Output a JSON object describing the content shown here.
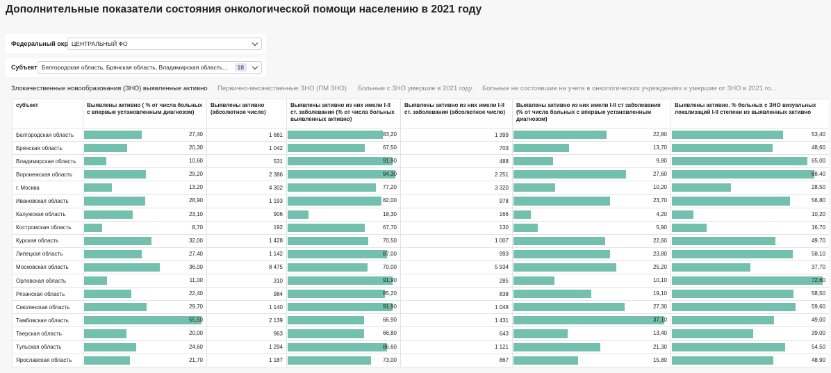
{
  "title": "Дополнительные показатели состояния онкологической помощи населению в 2021 году",
  "filters": {
    "district": {
      "label": "Федеральный округ",
      "value": "ЦЕНТРАЛЬНЫЙ ФО"
    },
    "subject": {
      "label": "Субъект",
      "value": "Белгородская область, Брянская область, Владимирская область, Вор...",
      "count": "18"
    }
  },
  "tabs": [
    "Злокачественные новообразования (ЗНО) выявленные активно",
    "Первично-множественные ЗНО (ПМ ЗНО)",
    "Больные с ЗНО умершие в 2021 году.",
    "Больные не состоявшие на учете в онкологических учреждениях и умершие от ЗНО в 2021 го..."
  ],
  "accent_color": "#74c0ae",
  "table": {
    "columns": [
      {
        "label": "субъект",
        "kind": "name"
      },
      {
        "label": "Выявлены активно ( % от числа больных с впервые установленным диагнозом)",
        "kind": "bar",
        "max": 55.5
      },
      {
        "label": "Выявлены активно (абсолютное число)",
        "kind": "num"
      },
      {
        "label": "Выявлены активно из них имели I-II ст. заболевания (% от числа больных выявленных активно)",
        "kind": "bar",
        "max": 94.3
      },
      {
        "label": "Выявлены активно из них имели I-II ст. заболевания (абсолютное число)",
        "kind": "num"
      },
      {
        "label": "Выявлены активно из них имели I-II ст заболевания (% от числа больных с впервые установленным диагнозом)",
        "kind": "bar",
        "max": 37.1
      },
      {
        "label": "Выявлены активно. % больных с ЗНО визуальных локализаций I-II степени из выявленных активно",
        "kind": "bar",
        "max": 72.6
      }
    ],
    "rows": [
      [
        "Белгородская область",
        "27,40",
        "1 681",
        "83,20",
        "1 399",
        "22,80",
        "53,40"
      ],
      [
        "Брянская область",
        "20,30",
        "1 042",
        "67,50",
        "703",
        "13,70",
        "48,60"
      ],
      [
        "Владимирская область",
        "10,60",
        "531",
        "91,90",
        "488",
        "9,80",
        "65,00"
      ],
      [
        "Воронежская область",
        "29,20",
        "2 386",
        "94,30",
        "2 251",
        "27,60",
        "68,40"
      ],
      [
        "г. Москва",
        "13,20",
        "4 302",
        "77,20",
        "3 320",
        "10,20",
        "28,50"
      ],
      [
        "Ивановская область",
        "28,90",
        "1 193",
        "82,00",
        "978",
        "23,70",
        "56,80"
      ],
      [
        "Калужская область",
        "23,10",
        "906",
        "18,30",
        "166",
        "4,20",
        "10,20"
      ],
      [
        "Костромская область",
        "8,70",
        "192",
        "67,70",
        "130",
        "5,90",
        "16,70"
      ],
      [
        "Курская область",
        "32,00",
        "1 428",
        "70,50",
        "1 007",
        "22,60",
        "49,70"
      ],
      [
        "Липецкая область",
        "27,40",
        "1 142",
        "87,00",
        "993",
        "23,80",
        "58,10"
      ],
      [
        "Московская область",
        "36,00",
        "8 475",
        "70,00",
        "5 934",
        "25,20",
        "37,70"
      ],
      [
        "Орловская область",
        "11,00",
        "310",
        "91,90",
        "285",
        "10,10",
        "72,60"
      ],
      [
        "Рязанская область",
        "22,40",
        "984",
        "85,20",
        "838",
        "19,10",
        "58,50"
      ],
      [
        "Смоленская область",
        "29,70",
        "1 140",
        "91,90",
        "1 048",
        "27,30",
        "59,60"
      ],
      [
        "Тамбовская область",
        "55,50",
        "2 139",
        "66,90",
        "1 431",
        "37,10",
        "49,00"
      ],
      [
        "Тверская область",
        "20,00",
        "963",
        "66,80",
        "643",
        "13,40",
        "39,00"
      ],
      [
        "Тульская область",
        "24,60",
        "1 294",
        "86,60",
        "1 121",
        "21,30",
        "54,50"
      ],
      [
        "Ярославская область",
        "21,70",
        "1 187",
        "73,00",
        "867",
        "15,80",
        "48,90"
      ]
    ]
  }
}
